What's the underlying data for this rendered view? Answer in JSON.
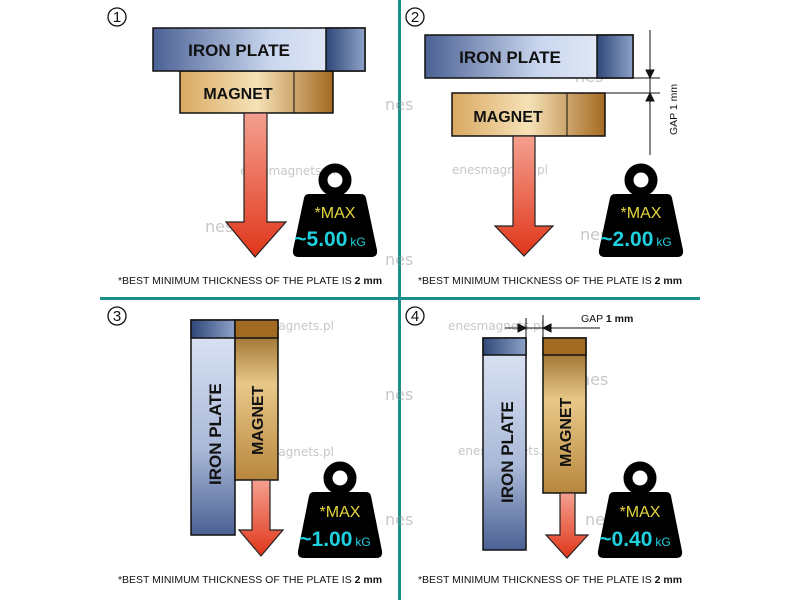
{
  "colors": {
    "divider": "#1a8f8a",
    "arrow": "#e03a1a",
    "max_text": "#e6d640",
    "value_text": "#1fd0df",
    "weight": "#000000"
  },
  "labels": {
    "iron_plate": "IRON PLATE",
    "iron_plate_vertical": "IRON  PLATE",
    "magnet": "MAGNET",
    "max": "*MAX",
    "unit": "kG"
  },
  "watermark": {
    "logo": "nes",
    "site": "enesmagnets.pl"
  },
  "panels": [
    {
      "number": "1",
      "value": "~5.00",
      "note_prefix": "*BEST MINIMUM THICKNESS OF THE PLATE IS ",
      "note_bold": "2 mm"
    },
    {
      "number": "2",
      "value": "~2.00",
      "gap_label": "GAP  1 mm",
      "note_prefix": "*BEST MINIMUM THICKNESS OF THE PLATE IS ",
      "note_bold": "2 mm"
    },
    {
      "number": "3",
      "value": "~1.00",
      "note_prefix": "*BEST MINIMUM THICKNESS OF THE PLATE IS ",
      "note_bold": "2 mm"
    },
    {
      "number": "4",
      "value": "~0.40",
      "gap_label_prefix": "GAP ",
      "gap_label_bold": "1 mm",
      "note_prefix": "*BEST MINIMUM THICKNESS OF THE PLATE IS ",
      "note_bold": "2 mm"
    }
  ]
}
